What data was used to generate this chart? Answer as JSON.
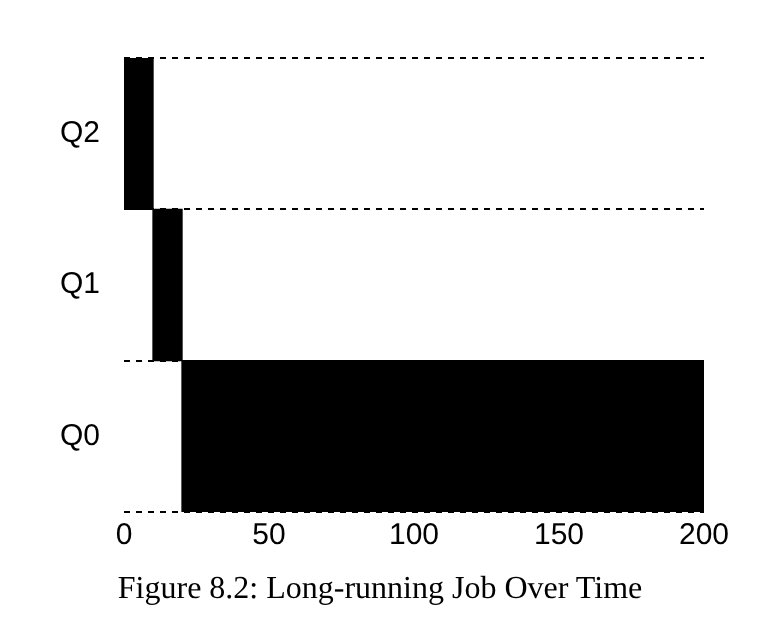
{
  "chart_data": {
    "type": "bar",
    "orientation": "horizontal",
    "categories": [
      "Q2",
      "Q1",
      "Q0"
    ],
    "values": [
      10,
      10,
      180
    ],
    "base": [
      0,
      10,
      20
    ],
    "color": "#000000",
    "xlim": [
      0,
      200
    ],
    "xticks": [
      0,
      50,
      100,
      150,
      200
    ],
    "grid": "y",
    "annotations": [
      "Figure 8.2: Long-running Job Over Time"
    ]
  }
}
